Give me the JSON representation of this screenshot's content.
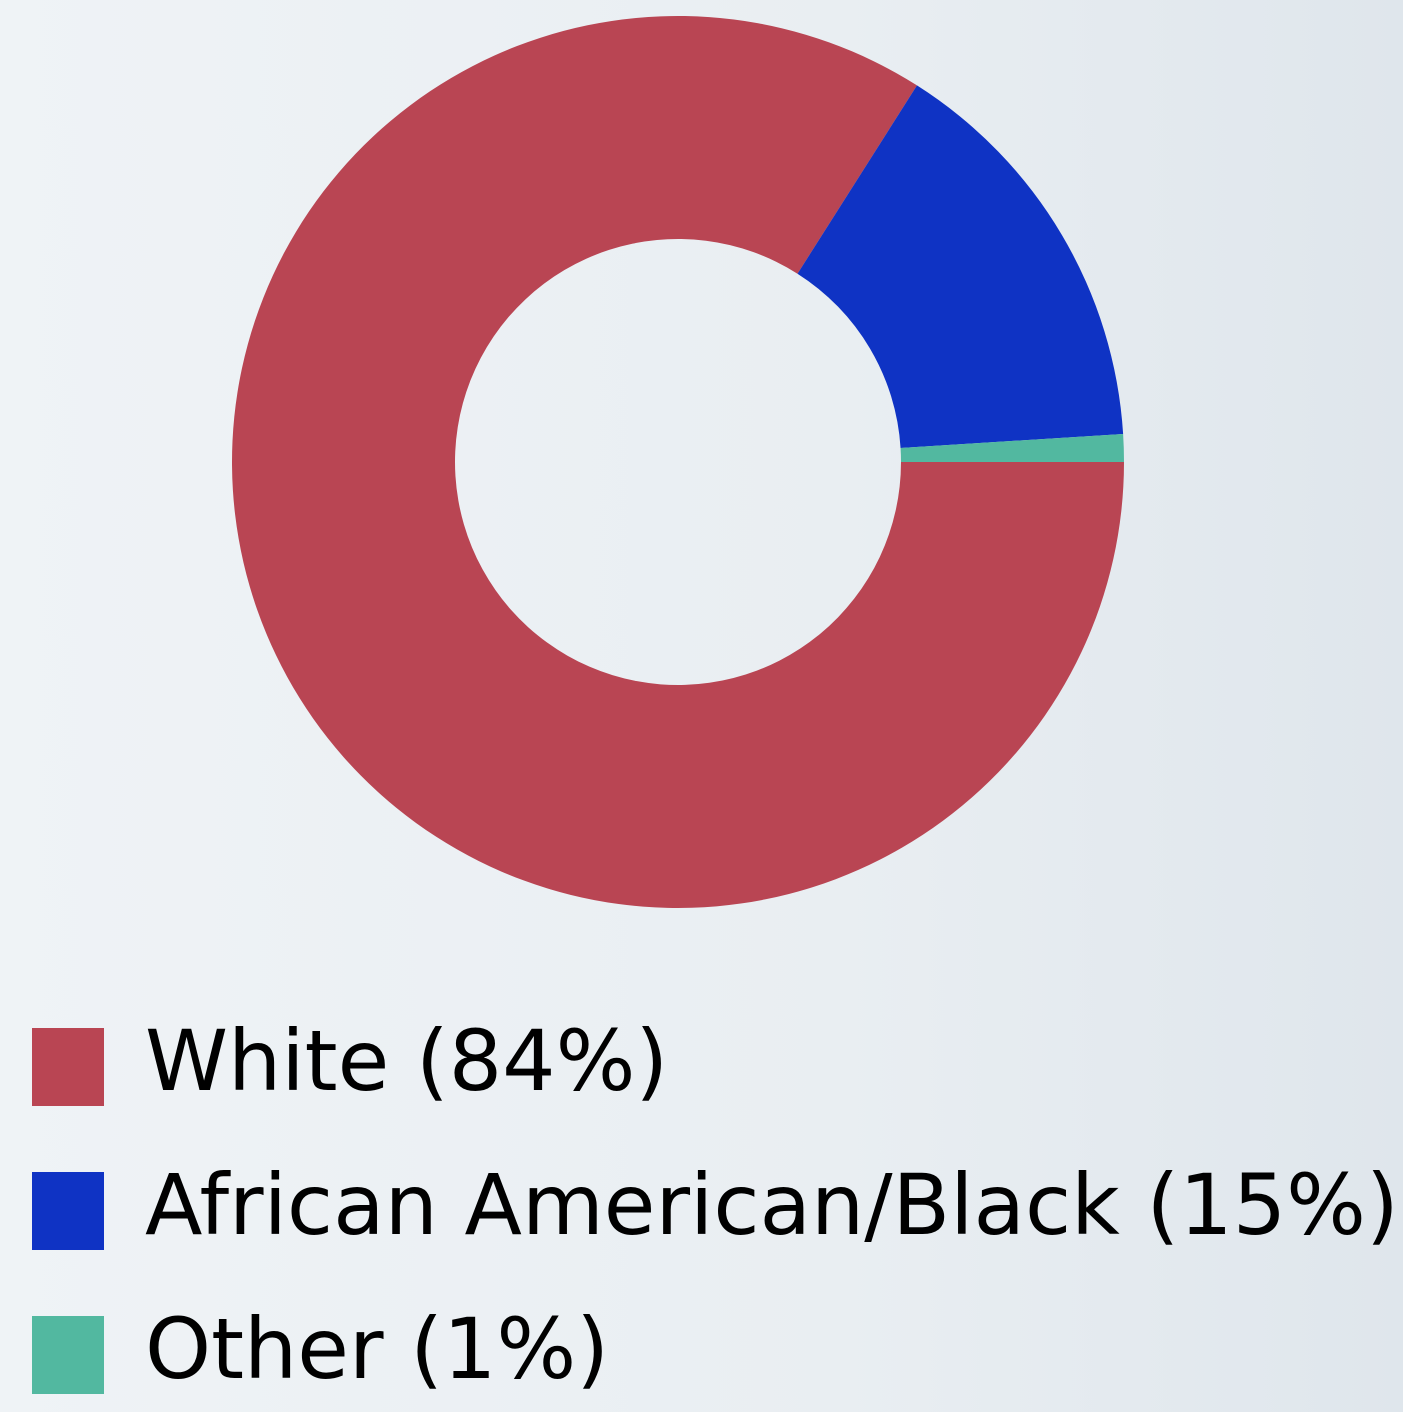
{
  "chart_data": {
    "type": "donut",
    "categories": [
      "White (84%)",
      "African American/Black (15%)",
      "Other (1%)"
    ],
    "values": [
      84,
      15,
      1
    ],
    "colors": [
      "#b94553",
      "#0f33c4",
      "#52b8a0"
    ]
  }
}
